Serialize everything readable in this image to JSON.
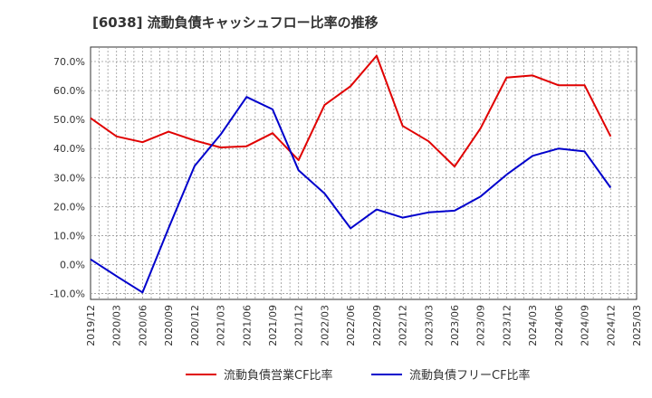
{
  "title": "[6038]  流動負債キャッシュフロー比率の推移",
  "chart_data": {
    "type": "line",
    "title": "[6038]  流動負債キャッシュフロー比率の推移",
    "xlabel": "",
    "ylabel": "",
    "x": [
      "2019/12",
      "2020/03",
      "2020/06",
      "2020/09",
      "2020/12",
      "2021/03",
      "2021/06",
      "2021/09",
      "2021/12",
      "2022/03",
      "2022/06",
      "2022/09",
      "2022/12",
      "2023/03",
      "2023/06",
      "2023/09",
      "2023/12",
      "2024/03",
      "2024/06",
      "2024/09",
      "2024/12",
      "2025/03"
    ],
    "ylim": [
      -12,
      75
    ],
    "y_ticks": [
      -10,
      0,
      10,
      20,
      30,
      40,
      50,
      60,
      70
    ],
    "y_tick_labels": [
      "-10.0%",
      "0.0%",
      "10.0%",
      "20.0%",
      "30.0%",
      "40.0%",
      "50.0%",
      "60.0%",
      "70.0%"
    ],
    "grid": true,
    "legend_position": "bottom",
    "series": [
      {
        "name": "流動負債営業CF比率",
        "color": "#e00000",
        "values": [
          50.5,
          44.2,
          42.2,
          45.8,
          42.8,
          40.4,
          40.8,
          45.3,
          36.0,
          55.0,
          61.5,
          72.0,
          47.8,
          42.5,
          33.8,
          47.0,
          64.5,
          65.2,
          61.8,
          61.8,
          44.2,
          null
        ]
      },
      {
        "name": "流動負債フリーCF比率",
        "color": "#0000cc",
        "values": [
          1.8,
          -4.0,
          -9.6,
          12.5,
          34.0,
          44.8,
          57.8,
          53.5,
          32.5,
          24.5,
          12.5,
          19.0,
          16.2,
          18.0,
          18.6,
          23.5,
          31.0,
          37.5,
          40.0,
          39.0,
          26.5,
          null
        ]
      }
    ]
  }
}
